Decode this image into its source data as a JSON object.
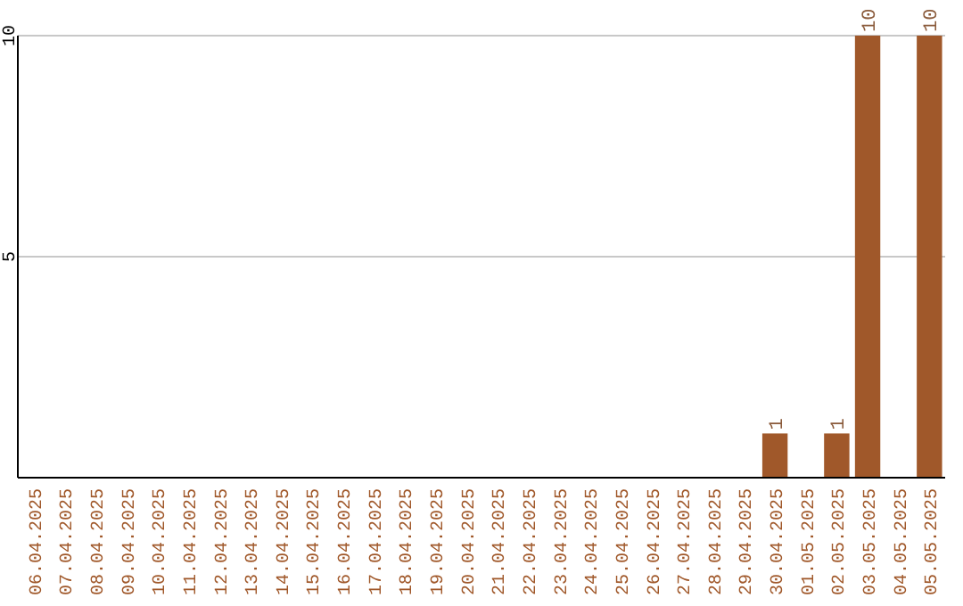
{
  "chart_data": {
    "type": "bar",
    "categories": [
      "06.04.2025",
      "07.04.2025",
      "08.04.2025",
      "09.04.2025",
      "10.04.2025",
      "11.04.2025",
      "12.04.2025",
      "13.04.2025",
      "14.04.2025",
      "15.04.2025",
      "16.04.2025",
      "17.04.2025",
      "18.04.2025",
      "19.04.2025",
      "20.04.2025",
      "21.04.2025",
      "22.04.2025",
      "23.04.2025",
      "24.04.2025",
      "25.04.2025",
      "26.04.2025",
      "27.04.2025",
      "28.04.2025",
      "29.04.2025",
      "30.04.2025",
      "01.05.2025",
      "02.05.2025",
      "03.05.2025",
      "04.05.2025",
      "05.05.2025"
    ],
    "values": [
      0,
      0,
      0,
      0,
      0,
      0,
      0,
      0,
      0,
      0,
      0,
      0,
      0,
      0,
      0,
      0,
      0,
      0,
      0,
      0,
      0,
      0,
      0,
      0,
      1,
      0,
      1,
      10,
      0,
      10
    ],
    "value_labels": [
      null,
      null,
      null,
      null,
      null,
      null,
      null,
      null,
      null,
      null,
      null,
      null,
      null,
      null,
      null,
      null,
      null,
      null,
      null,
      null,
      null,
      null,
      null,
      null,
      "1",
      null,
      "1",
      "10",
      null,
      "10"
    ],
    "color": "#a0582a",
    "ylim": [
      0,
      10
    ],
    "yticks": [
      5,
      10
    ],
    "grid": "y"
  }
}
